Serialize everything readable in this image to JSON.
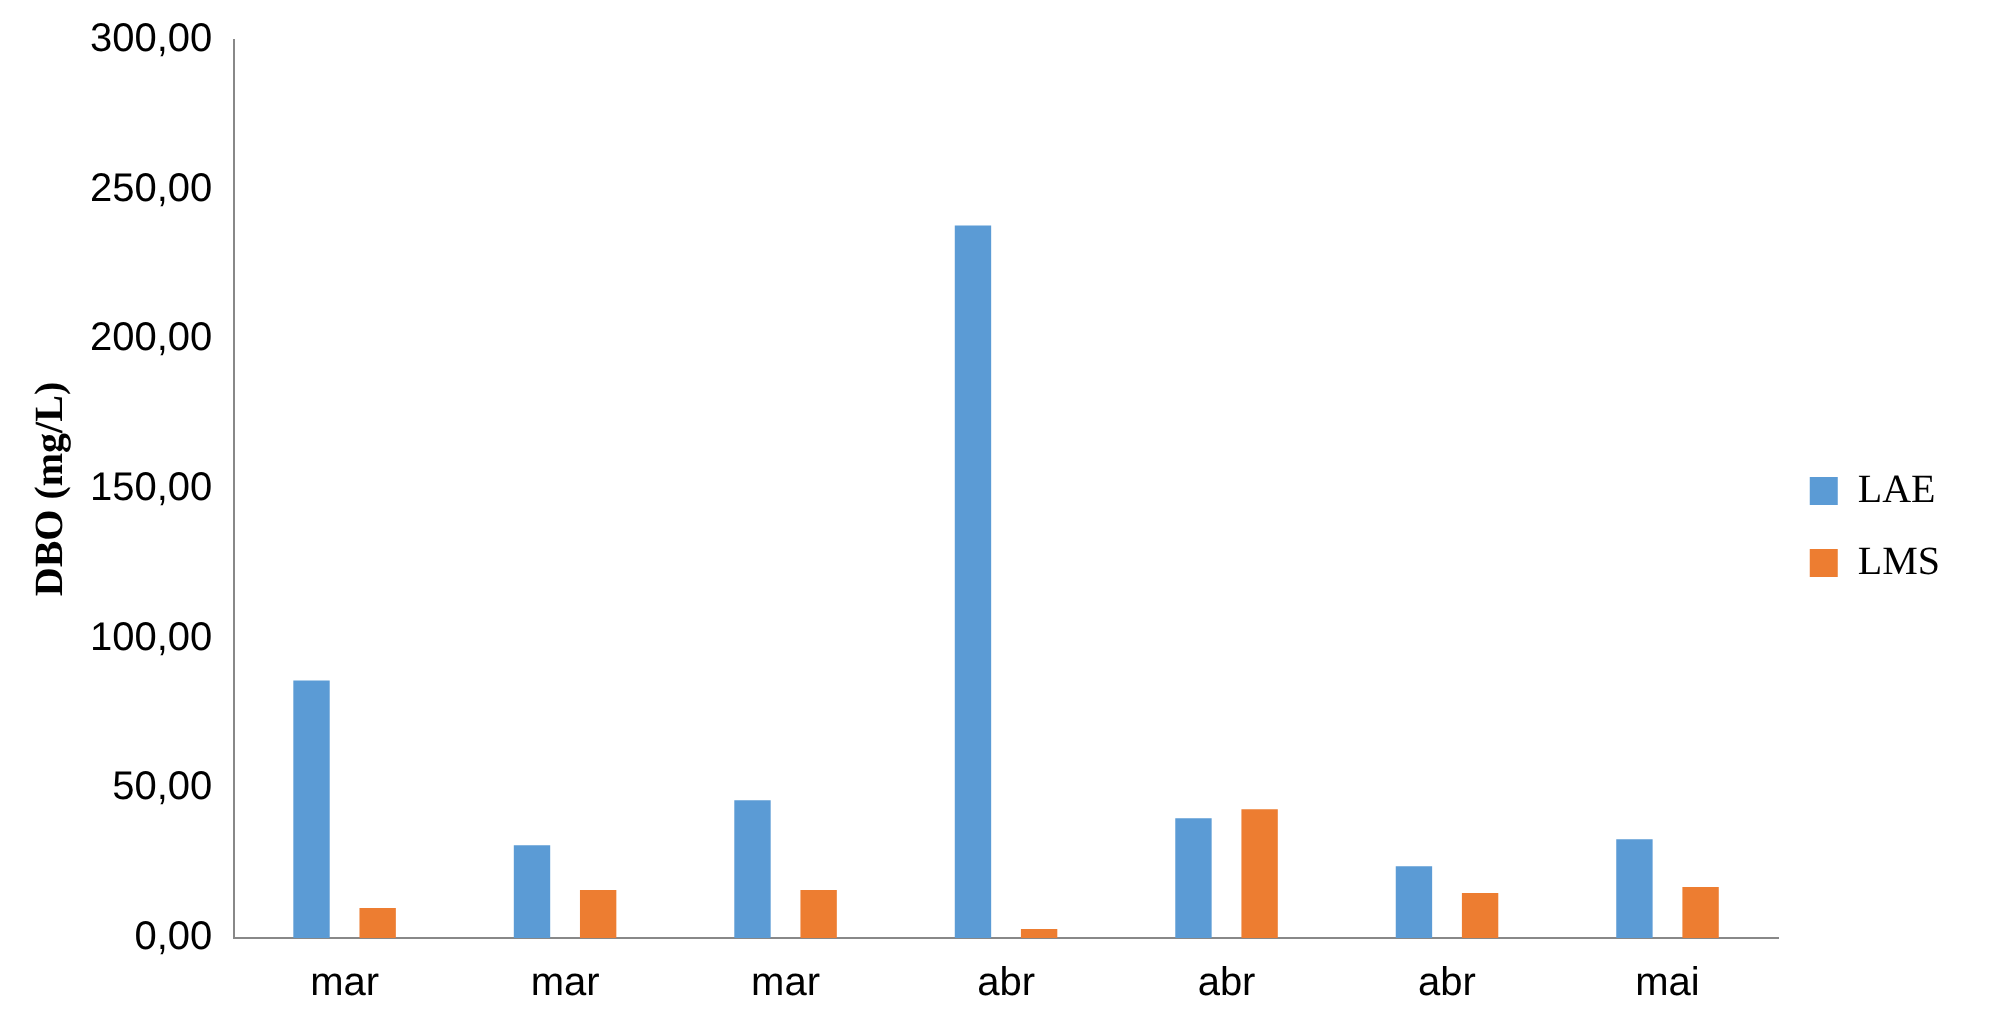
{
  "chart_data": {
    "type": "bar",
    "ylabel": "DBO (mg/L)",
    "categories": [
      "mar",
      "mar",
      "mar",
      "abr",
      "abr",
      "abr",
      "mai"
    ],
    "series": [
      {
        "name": "LAE",
        "color": "#5b9bd5",
        "values": [
          86,
          31,
          46,
          238,
          40,
          24,
          33
        ]
      },
      {
        "name": "LMS",
        "color": "#ed7d31",
        "values": [
          10,
          16,
          16,
          3,
          43,
          15,
          17
        ]
      }
    ],
    "ylim": [
      0,
      300
    ],
    "yticks": [
      {
        "value": 0,
        "label": "0,00"
      },
      {
        "value": 50,
        "label": "50,00"
      },
      {
        "value": 100,
        "label": "100,00"
      },
      {
        "value": 150,
        "label": "150,00"
      },
      {
        "value": 200,
        "label": "200,00"
      },
      {
        "value": 250,
        "label": "250,00"
      },
      {
        "value": 300,
        "label": "300,00"
      }
    ],
    "grid": false,
    "legend": "right"
  }
}
